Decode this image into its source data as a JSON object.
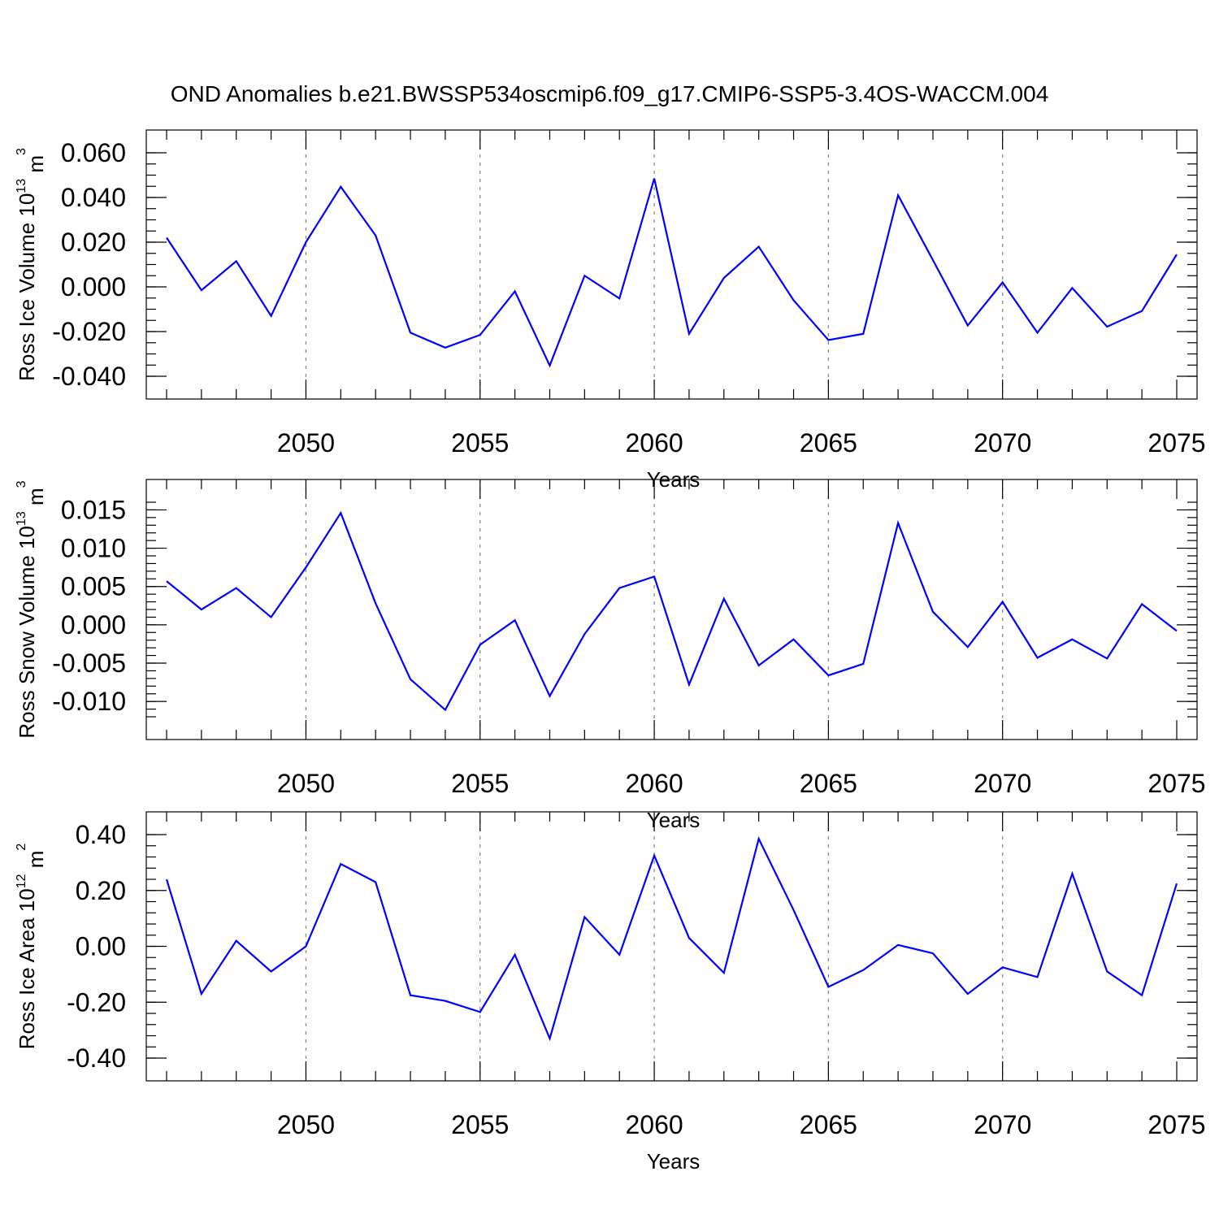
{
  "figure": {
    "title": "OND Anomalies b.e21.BWSSP534oscmip6.f09_g17.CMIP6-SSP5-3.4OS-WACCM.004"
  },
  "colors": {
    "line": "#0000ff",
    "axis": "#000000",
    "grid": "#808080"
  },
  "chart_data": [
    {
      "type": "line",
      "title": "",
      "xlabel": "Years",
      "ylabel": {
        "text": "Ross Ice Volume 10",
        "exp": "13",
        "unit": " m",
        "unit_exp": "3"
      },
      "xlim": [
        2046,
        2075
      ],
      "ylim": [
        -0.04,
        0.06
      ],
      "x_ticks": [
        2050,
        2055,
        2060,
        2065,
        2070,
        2075
      ],
      "x_tick_labels": [
        "2050",
        "2055",
        "2060",
        "2065",
        "2070",
        "2075"
      ],
      "y_ticks": [
        -0.04,
        -0.02,
        0.0,
        0.02,
        0.04,
        0.06
      ],
      "y_tick_labels": [
        "-0.040",
        "-0.020",
        "0.000",
        "0.020",
        "0.040",
        "0.060"
      ],
      "y_minor_step": 0.005,
      "grid": "dashed vertical at major x ticks",
      "x": [
        2046,
        2047,
        2048,
        2049,
        2050,
        2051,
        2052,
        2053,
        2054,
        2055,
        2056,
        2057,
        2058,
        2059,
        2060,
        2061,
        2062,
        2063,
        2064,
        2065,
        2066,
        2067,
        2068,
        2069,
        2070,
        2071,
        2072,
        2073,
        2074,
        2075
      ],
      "series": [
        {
          "values": [
            0.022,
            -0.0015,
            0.0115,
            -0.013,
            0.02,
            0.0448,
            0.023,
            -0.0205,
            -0.0272,
            -0.0215,
            -0.002,
            -0.0352,
            0.005,
            -0.0052,
            0.0485,
            -0.021,
            0.004,
            0.018,
            -0.006,
            -0.0238,
            -0.021,
            0.041,
            0.012,
            -0.0173,
            0.002,
            -0.0205,
            -0.0005,
            -0.0178,
            -0.0108,
            0.0145
          ]
        }
      ]
    },
    {
      "type": "line",
      "title": "",
      "xlabel": "Years",
      "ylabel": {
        "text": "Ross Snow Volume 10",
        "exp": "13",
        "unit": " m",
        "unit_exp": "3"
      },
      "xlim": [
        2046,
        2075
      ],
      "ylim": [
        -0.012,
        0.016
      ],
      "x_ticks": [
        2050,
        2055,
        2060,
        2065,
        2070,
        2075
      ],
      "x_tick_labels": [
        "2050",
        "2055",
        "2060",
        "2065",
        "2070",
        "2075"
      ],
      "y_ticks": [
        -0.01,
        -0.005,
        0.0,
        0.005,
        0.01,
        0.015
      ],
      "y_tick_labels": [
        "-0.010",
        "-0.005",
        "0.000",
        "0.005",
        "0.010",
        "0.015"
      ],
      "y_minor_step": 0.001,
      "grid": "dashed vertical at major x ticks",
      "x": [
        2046,
        2047,
        2048,
        2049,
        2050,
        2051,
        2052,
        2053,
        2054,
        2055,
        2056,
        2057,
        2058,
        2059,
        2060,
        2061,
        2062,
        2063,
        2064,
        2065,
        2066,
        2067,
        2068,
        2069,
        2070,
        2071,
        2072,
        2073,
        2074,
        2075
      ],
      "series": [
        {
          "values": [
            0.0057,
            0.002,
            0.0048,
            0.001,
            0.0075,
            0.0146,
            0.0028,
            -0.0071,
            -0.0111,
            -0.0026,
            0.0006,
            -0.0093,
            -0.0012,
            0.0048,
            0.0063,
            -0.0078,
            0.0034,
            -0.0053,
            -0.0019,
            -0.0066,
            -0.0051,
            0.0133,
            0.0017,
            -0.0029,
            0.003,
            -0.0043,
            -0.0019,
            -0.0044,
            0.0027,
            -0.0008
          ]
        }
      ]
    },
    {
      "type": "line",
      "title": "",
      "xlabel": "Years",
      "ylabel": {
        "text": "Ross Ice Area 10",
        "exp": "12",
        "unit": " m",
        "unit_exp": "2"
      },
      "xlim": [
        2046,
        2075
      ],
      "ylim": [
        -0.4,
        0.4
      ],
      "x_ticks": [
        2050,
        2055,
        2060,
        2065,
        2070,
        2075
      ],
      "x_tick_labels": [
        "2050",
        "2055",
        "2060",
        "2065",
        "2070",
        "2075"
      ],
      "y_ticks": [
        -0.4,
        -0.2,
        0.0,
        0.2,
        0.4
      ],
      "y_tick_labels": [
        "-0.40",
        "-0.20",
        "0.00",
        "0.20",
        "0.40"
      ],
      "y_minor_step": 0.04,
      "grid": "dashed vertical at major x ticks",
      "x": [
        2046,
        2047,
        2048,
        2049,
        2050,
        2051,
        2052,
        2053,
        2054,
        2055,
        2056,
        2057,
        2058,
        2059,
        2060,
        2061,
        2062,
        2063,
        2064,
        2065,
        2066,
        2067,
        2068,
        2069,
        2070,
        2071,
        2072,
        2073,
        2074,
        2075
      ],
      "series": [
        {
          "values": [
            0.24,
            -0.17,
            0.02,
            -0.09,
            0.0,
            0.295,
            0.23,
            -0.175,
            -0.195,
            -0.235,
            -0.03,
            -0.33,
            0.105,
            -0.03,
            0.325,
            0.03,
            -0.095,
            0.385,
            0.13,
            -0.145,
            -0.085,
            0.005,
            -0.025,
            -0.17,
            -0.075,
            -0.11,
            0.26,
            -0.09,
            -0.175,
            0.225
          ]
        }
      ]
    }
  ]
}
